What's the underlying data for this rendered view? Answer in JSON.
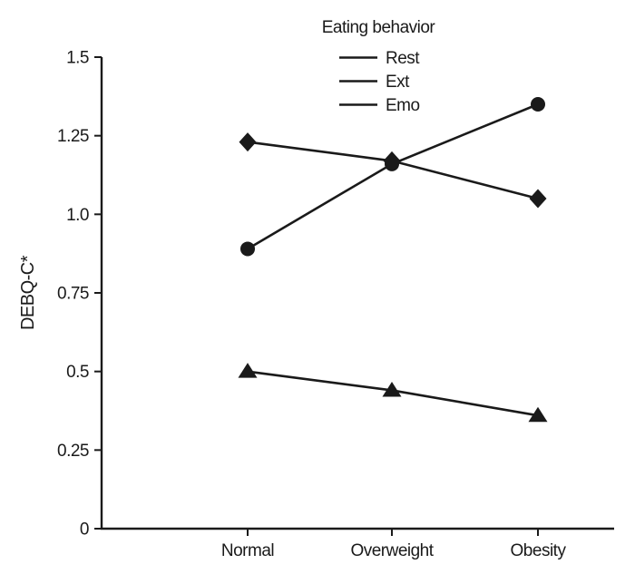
{
  "figure": {
    "background": "#ffffff",
    "ink_color": "#1a1a1a"
  },
  "chart_data": {
    "type": "line",
    "title": "",
    "legend_title": "Eating behavior",
    "legend_position": "top-center",
    "categories": [
      "Normal",
      "Overweight",
      "Obesity"
    ],
    "series": [
      {
        "name": "Rest",
        "marker": "circle",
        "values": [
          0.89,
          1.16,
          1.35
        ]
      },
      {
        "name": "Ext",
        "marker": "diamond",
        "values": [
          1.23,
          1.17,
          1.05
        ]
      },
      {
        "name": "Emo",
        "marker": "triangle",
        "values": [
          0.5,
          0.44,
          0.36
        ]
      }
    ],
    "xlabel": "",
    "ylabel": "DEBQ-C*",
    "ylim": [
      0,
      1.5
    ],
    "yticks": {
      "values": [
        0,
        0.25,
        0.5,
        0.75,
        1.0,
        1.25,
        1.5
      ],
      "labels": [
        "0",
        "0.25",
        "0.5",
        "0.75",
        "1.0",
        "1.25",
        "1.5"
      ]
    },
    "grid": false,
    "line_color": "#1a1a1a",
    "marker_color": "#1a1a1a"
  }
}
